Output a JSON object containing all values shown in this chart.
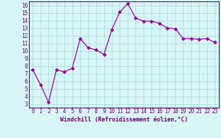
{
  "x": [
    0,
    1,
    2,
    3,
    4,
    5,
    6,
    7,
    8,
    9,
    10,
    11,
    12,
    13,
    14,
    15,
    16,
    17,
    18,
    19,
    20,
    21,
    22,
    23
  ],
  "y": [
    7.5,
    5.5,
    3.2,
    7.5,
    7.2,
    7.7,
    11.6,
    10.4,
    10.1,
    9.5,
    12.8,
    15.1,
    16.2,
    14.3,
    13.9,
    13.9,
    13.6,
    13.0,
    12.9,
    11.6,
    11.6,
    11.5,
    11.6,
    11.1
  ],
  "line_color": "#990099",
  "marker": "D",
  "marker_size": 2.5,
  "bg_color": "#d8f5f5",
  "grid_color": "#aadddd",
  "xlabel": "Windchill (Refroidissement éolien,°C)",
  "xlim": [
    -0.5,
    23.5
  ],
  "ylim": [
    2.5,
    16.5
  ],
  "yticks": [
    3,
    4,
    5,
    6,
    7,
    8,
    9,
    10,
    11,
    12,
    13,
    14,
    15,
    16
  ],
  "xticks": [
    0,
    1,
    2,
    3,
    4,
    5,
    6,
    7,
    8,
    9,
    10,
    11,
    12,
    13,
    14,
    15,
    16,
    17,
    18,
    19,
    20,
    21,
    22,
    23
  ],
  "xlabel_color": "#660066",
  "tick_color": "#660066",
  "spine_color": "#660066",
  "tick_fontsize": 5.5,
  "xlabel_fontsize": 6.0
}
